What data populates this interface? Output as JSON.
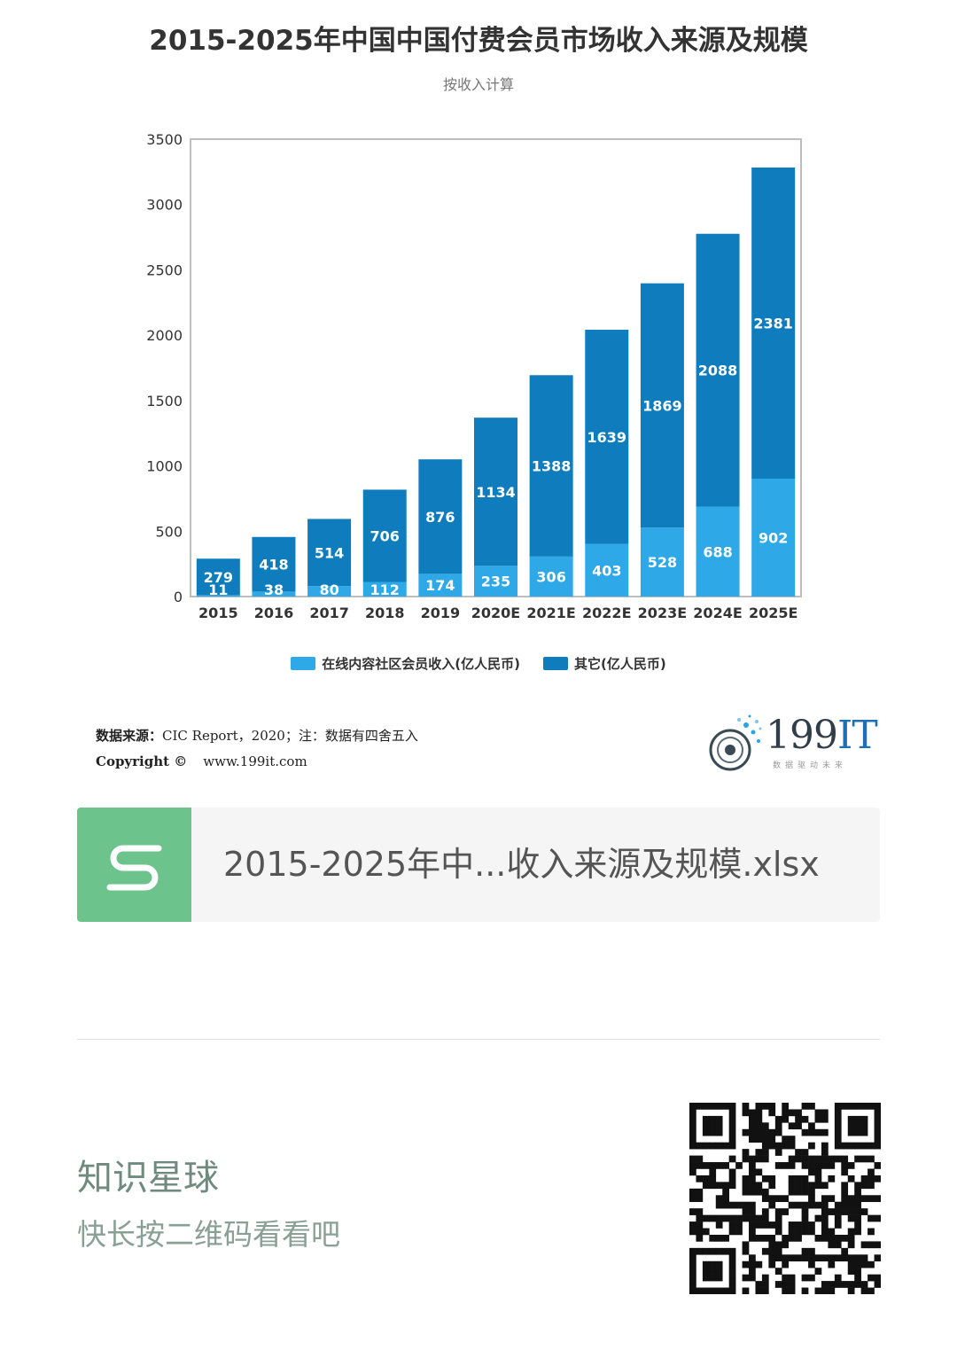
{
  "chart_data": {
    "type": "bar",
    "stacked": true,
    "title": "2015-2025年中国中国付费会员市场收入来源及规模",
    "subtitle": "按收入计算",
    "categories": [
      "2015",
      "2016",
      "2017",
      "2018",
      "2019",
      "2020E",
      "2021E",
      "2022E",
      "2023E",
      "2024E",
      "2025E"
    ],
    "series": [
      {
        "name": "在线内容社区会员收入(亿人民币)",
        "color": "#2ea8e6",
        "values": [
          11,
          38,
          80,
          112,
          174,
          235,
          306,
          403,
          528,
          688,
          902
        ]
      },
      {
        "name": "其它(亿人民币)",
        "color": "#0f7dbd",
        "values": [
          279,
          418,
          514,
          706,
          876,
          1134,
          1388,
          1639,
          1869,
          2088,
          2381
        ]
      }
    ],
    "ylim": [
      0,
      3500
    ],
    "yticks": [
      0,
      500,
      1000,
      1500,
      2000,
      2500,
      3000,
      3500
    ],
    "grid": false,
    "legend": "bottom-center"
  },
  "source": {
    "label": "数据来源：",
    "text": "CIC Report，2020；注：数据有四舍五入",
    "copyright": "Copyright ©",
    "website": "www.199it.com"
  },
  "brand": {
    "name_digits": "199",
    "name_letters": "IT",
    "tagline": "数据驱动未来"
  },
  "file": {
    "icon_letter": "S",
    "name": "2015-2025年中...收入来源及规模.xlsx"
  },
  "promo": {
    "title": "知识星球",
    "subtitle": "快长按二维码看看吧"
  },
  "colors": {
    "file_icon": "#6cc48c",
    "promo_text": "#6f8a7e"
  }
}
